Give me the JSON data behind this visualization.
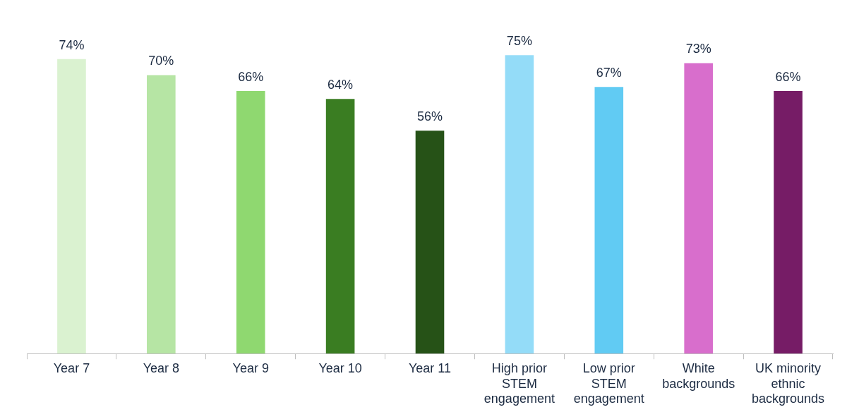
{
  "chart_data": {
    "type": "bar",
    "categories": [
      "Year 7",
      "Year 8",
      "Year 9",
      "Year 10",
      "Year 11",
      "High prior STEM engagement",
      "Low prior STEM engagement",
      "White backgrounds",
      "UK minority ethnic backgrounds"
    ],
    "values": [
      74,
      70,
      66,
      64,
      56,
      75,
      67,
      73,
      66
    ],
    "colors": [
      "#daf2d0",
      "#b6e5a4",
      "#8fd870",
      "#3a7d22",
      "#265217",
      "#94dcf8",
      "#61cbf3",
      "#d86ecc",
      "#761c66"
    ],
    "value_labels": [
      "74%",
      "70%",
      "66%",
      "64%",
      "56%",
      "75%",
      "67%",
      "73%",
      "66%"
    ],
    "grid": false,
    "legend": false
  }
}
